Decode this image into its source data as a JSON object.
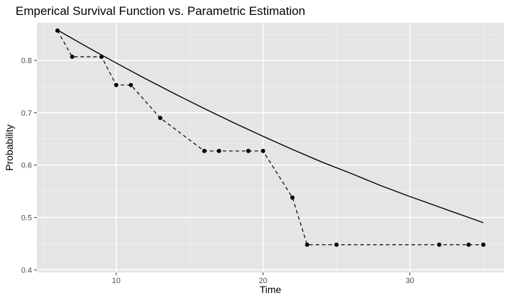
{
  "chart_data": {
    "type": "line",
    "title": "Emperical Survival Function vs. Parametric Estimation",
    "xlabel": "Time",
    "ylabel": "Probability",
    "xlim": [
      4.6,
      36.4
    ],
    "ylim": [
      0.395,
      0.872
    ],
    "x_ticks": [
      10,
      20,
      30
    ],
    "y_ticks": [
      0.4,
      0.5,
      0.6,
      0.7,
      0.8
    ],
    "x_tick_labels": [
      "10",
      "20",
      "30"
    ],
    "y_tick_labels": [
      "0.4",
      "0.5",
      "0.6",
      "0.7",
      "0.8"
    ],
    "grid": true,
    "legend": "none",
    "colors": {
      "panel": "#e5e5e5",
      "grid_major": "#ffffff",
      "grid_minor": "#f2f2f2",
      "line": "#000000"
    },
    "series": [
      {
        "style": "dashed-step-with-points",
        "x": [
          6,
          7,
          9,
          10,
          11,
          13,
          16,
          17,
          19,
          20,
          22,
          23,
          25,
          32,
          34,
          35
        ],
        "y": [
          0.857,
          0.807,
          0.807,
          0.753,
          0.753,
          0.69,
          0.627,
          0.627,
          0.627,
          0.627,
          0.538,
          0.448,
          0.448,
          0.448,
          0.448,
          0.448
        ]
      },
      {
        "style": "solid-curve",
        "x": [
          6,
          8,
          10,
          12,
          14,
          16,
          18,
          20,
          22,
          24,
          26,
          28,
          30,
          32,
          34,
          35
        ],
        "y": [
          0.858,
          0.826,
          0.795,
          0.765,
          0.736,
          0.708,
          0.681,
          0.655,
          0.63,
          0.606,
          0.584,
          0.561,
          0.54,
          0.52,
          0.5,
          0.49
        ]
      }
    ]
  }
}
